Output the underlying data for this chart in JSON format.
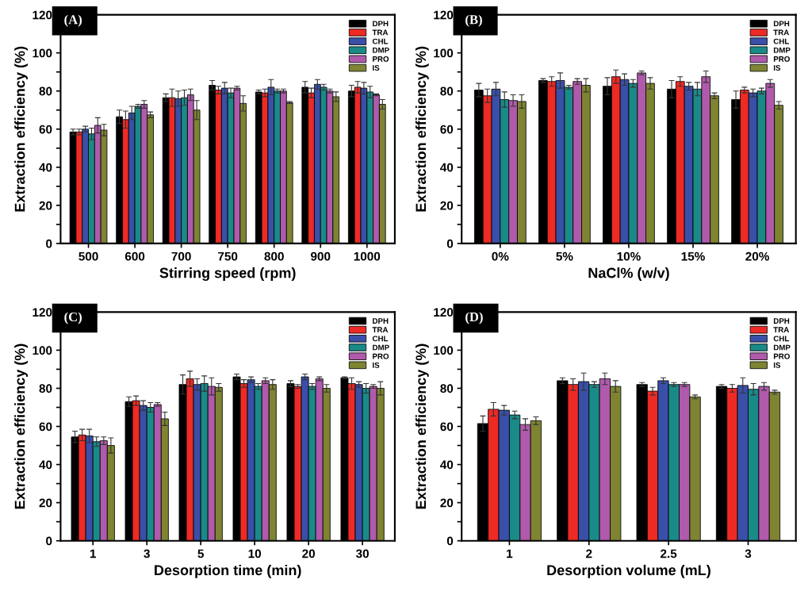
{
  "chart_data": [
    {
      "type": "bar",
      "annotations": [
        "(A)"
      ],
      "xlabel": "Stirring speed (rpm)",
      "ylabel": "Extraction efficiency (%)",
      "categories": [
        "500",
        "600",
        "700",
        "750",
        "800",
        "900",
        "1000"
      ],
      "ylim": [
        0,
        120
      ],
      "yticks": [
        0,
        {
          "value": 10,
          "label": null
        },
        20,
        {
          "value": 30,
          "label": null
        },
        40,
        {
          "value": 50,
          "label": null
        },
        60,
        {
          "value": 70,
          "label": null
        },
        80,
        {
          "value": 90,
          "label": null
        },
        100,
        {
          "value": 110,
          "label": null
        },
        120
      ],
      "legend": "top right",
      "series": [
        {
          "name": "DPH",
          "color": "#000000",
          "values": [
            58.5,
            66.5,
            76.5,
            83,
            79.5,
            82,
            80
          ],
          "errors": [
            1.5,
            3.5,
            2,
            2.5,
            1,
            3,
            3
          ]
        },
        {
          "name": "TRA",
          "color": "#ee2a24",
          "values": [
            58.5,
            65,
            76.5,
            80.5,
            79,
            79,
            82
          ],
          "errors": [
            1.5,
            4.5,
            4.5,
            2,
            2,
            2.5,
            3
          ]
        },
        {
          "name": "CHL",
          "color": "#3a4fa8",
          "values": [
            60,
            68.5,
            76,
            81.5,
            82,
            83.5,
            81.5
          ],
          "errors": [
            1.5,
            3.5,
            4,
            3,
            4,
            2.5,
            3
          ]
        },
        {
          "name": "DMP",
          "color": "#1a8a88",
          "values": [
            57.5,
            72,
            76.5,
            79,
            80,
            82,
            79.5
          ],
          "errors": [
            3,
            1,
            4,
            2.5,
            1,
            1.5,
            3
          ]
        },
        {
          "name": "PRO",
          "color": "#b05aac",
          "values": [
            62,
            73,
            78,
            81.5,
            80,
            80,
            78
          ],
          "errors": [
            4,
            2,
            3,
            1,
            1,
            1,
            0.5
          ]
        },
        {
          "name": "IS",
          "color": "#7e8432",
          "values": [
            59.5,
            67.5,
            70,
            73.5,
            74,
            77,
            73
          ],
          "errors": [
            3,
            1.5,
            5,
            4,
            0.5,
            2.5,
            2.5
          ]
        }
      ]
    },
    {
      "type": "bar",
      "annotations": [
        "(B)"
      ],
      "xlabel": "NaCl% (w/v)",
      "ylabel": "Extraction efficiency (%)",
      "categories": [
        "0%",
        "5%",
        "10%",
        "15%",
        "20%"
      ],
      "ylim": [
        0,
        120
      ],
      "yticks": [
        0,
        {
          "value": 10,
          "label": null
        },
        20,
        {
          "value": 30,
          "label": null
        },
        40,
        {
          "value": 50,
          "label": null
        },
        60,
        {
          "value": 70,
          "label": null
        },
        80,
        {
          "value": 90,
          "label": null
        },
        100,
        {
          "value": 110,
          "label": null
        },
        120
      ],
      "legend": "top right",
      "series": [
        {
          "name": "DPH",
          "color": "#000000",
          "values": [
            80.5,
            85.5,
            82.5,
            81,
            75.5
          ],
          "errors": [
            3.5,
            1,
            4.5,
            4.5,
            4.5
          ]
        },
        {
          "name": "TRA",
          "color": "#ee2a24",
          "values": [
            77.5,
            85,
            87.5,
            85,
            80.5
          ],
          "errors": [
            3.5,
            2.5,
            3.5,
            2.5,
            1.5
          ]
        },
        {
          "name": "CHL",
          "color": "#3a4fa8",
          "values": [
            81,
            85.5,
            86,
            82.5,
            79
          ],
          "errors": [
            3.5,
            4,
            3,
            2,
            2
          ]
        },
        {
          "name": "DMP",
          "color": "#1a8a88",
          "values": [
            75.5,
            82,
            84,
            81,
            80
          ],
          "errors": [
            4,
            1,
            2,
            3.5,
            1.5
          ]
        },
        {
          "name": "PRO",
          "color": "#b05aac",
          "values": [
            75,
            85,
            89.5,
            87.5,
            84
          ],
          "errors": [
            3,
            1.5,
            1,
            3,
            2
          ]
        },
        {
          "name": "IS",
          "color": "#7e8432",
          "values": [
            74.5,
            83,
            84,
            77.5,
            72.5
          ],
          "errors": [
            3.5,
            3.5,
            3,
            1.5,
            2
          ]
        }
      ]
    },
    {
      "type": "bar",
      "annotations": [
        "(C)"
      ],
      "xlabel": "Desorption time (min)",
      "ylabel": "Extraction efficiency (%)",
      "categories": [
        "1",
        "3",
        "5",
        "10",
        "20",
        "30"
      ],
      "ylim": [
        0,
        120
      ],
      "yticks": [
        0,
        {
          "value": 10,
          "label": null
        },
        20,
        {
          "value": 30,
          "label": null
        },
        40,
        {
          "value": 50,
          "label": null
        },
        60,
        {
          "value": 70,
          "label": null
        },
        80,
        {
          "value": 90,
          "label": null
        },
        100,
        {
          "value": 110,
          "label": null
        },
        120
      ],
      "legend": "top right",
      "series": [
        {
          "name": "DPH",
          "color": "#000000",
          "values": [
            54.5,
            73,
            82,
            86,
            82.5,
            85.5
          ],
          "errors": [
            3,
            2.5,
            5,
            1.5,
            1.5,
            0.5
          ]
        },
        {
          "name": "TRA",
          "color": "#ee2a24",
          "values": [
            55.5,
            73.5,
            85,
            82.5,
            81,
            82.5
          ],
          "errors": [
            3,
            2.5,
            4,
            2,
            1,
            3
          ]
        },
        {
          "name": "CHL",
          "color": "#3a4fa8",
          "values": [
            55,
            71,
            82,
            84.5,
            86,
            82
          ],
          "errors": [
            3.5,
            2.5,
            3,
            1.5,
            1.5,
            1.5
          ]
        },
        {
          "name": "DMP",
          "color": "#1a8a88",
          "values": [
            52,
            70,
            82.5,
            81,
            81,
            80
          ],
          "errors": [
            2.5,
            2.5,
            4,
            1.5,
            1.5,
            2.5
          ]
        },
        {
          "name": "PRO",
          "color": "#b05aac",
          "values": [
            52.5,
            71.5,
            81,
            84,
            85,
            81
          ],
          "errors": [
            2,
            1,
            4.5,
            1.5,
            1,
            1
          ]
        },
        {
          "name": "IS",
          "color": "#7e8432",
          "values": [
            50,
            64,
            80.5,
            82,
            80,
            80
          ],
          "errors": [
            4,
            3.5,
            2,
            2.5,
            2,
            3.5
          ]
        }
      ]
    },
    {
      "type": "bar",
      "annotations": [
        "(D)"
      ],
      "xlabel": "Desorption volume (mL)",
      "ylabel": "Extraction efficiency (%)",
      "categories": [
        "1",
        "2",
        "2.5",
        "3"
      ],
      "ylim": [
        0,
        120
      ],
      "yticks": [
        0,
        {
          "value": 10,
          "label": null
        },
        20,
        {
          "value": 30,
          "label": null
        },
        40,
        {
          "value": 50,
          "label": null
        },
        60,
        {
          "value": 70,
          "label": null
        },
        80,
        {
          "value": 90,
          "label": null
        },
        100,
        {
          "value": 110,
          "label": null
        },
        120
      ],
      "legend": "top right",
      "series": [
        {
          "name": "DPH",
          "color": "#000000",
          "values": [
            61.5,
            84,
            82,
            81
          ],
          "errors": [
            4,
            1.5,
            1,
            1
          ]
        },
        {
          "name": "TRA",
          "color": "#ee2a24",
          "values": [
            69,
            82,
            78.5,
            80
          ],
          "errors": [
            3.5,
            3,
            2,
            2
          ]
        },
        {
          "name": "CHL",
          "color": "#3a4fa8",
          "values": [
            68.5,
            83.5,
            84,
            81.5
          ],
          "errors": [
            2.5,
            4.5,
            1.5,
            4
          ]
        },
        {
          "name": "DMP",
          "color": "#1a8a88",
          "values": [
            66,
            82,
            82,
            79.5
          ],
          "errors": [
            2,
            1.5,
            1,
            3
          ]
        },
        {
          "name": "PRO",
          "color": "#b05aac",
          "values": [
            61,
            85,
            82,
            81
          ],
          "errors": [
            3,
            3,
            1,
            2
          ]
        },
        {
          "name": "IS",
          "color": "#7e8432",
          "values": [
            63,
            81,
            75.5,
            78
          ],
          "errors": [
            2,
            3,
            1,
            1
          ]
        }
      ]
    }
  ]
}
